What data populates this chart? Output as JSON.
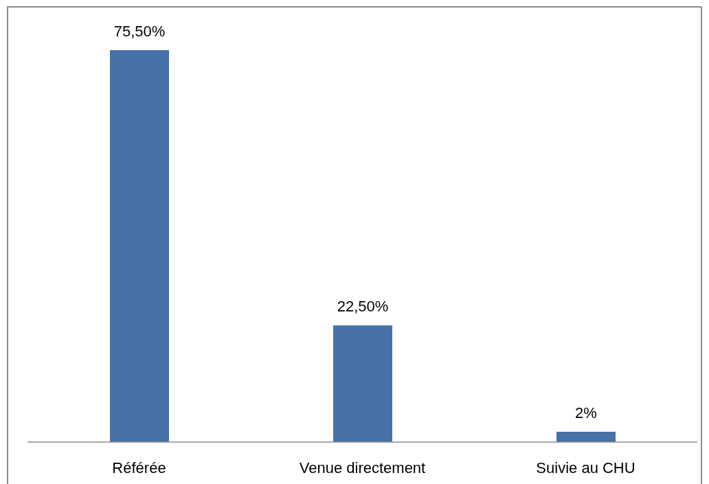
{
  "chart_data": {
    "type": "bar",
    "categories": [
      "Référée",
      "Venue directement",
      "Suivie au CHU"
    ],
    "values": [
      75.5,
      22.5,
      2
    ],
    "value_labels": [
      "75,50%",
      "22,50%",
      "2%"
    ],
    "color": "#4672a7",
    "tick_labels": "x"
  }
}
